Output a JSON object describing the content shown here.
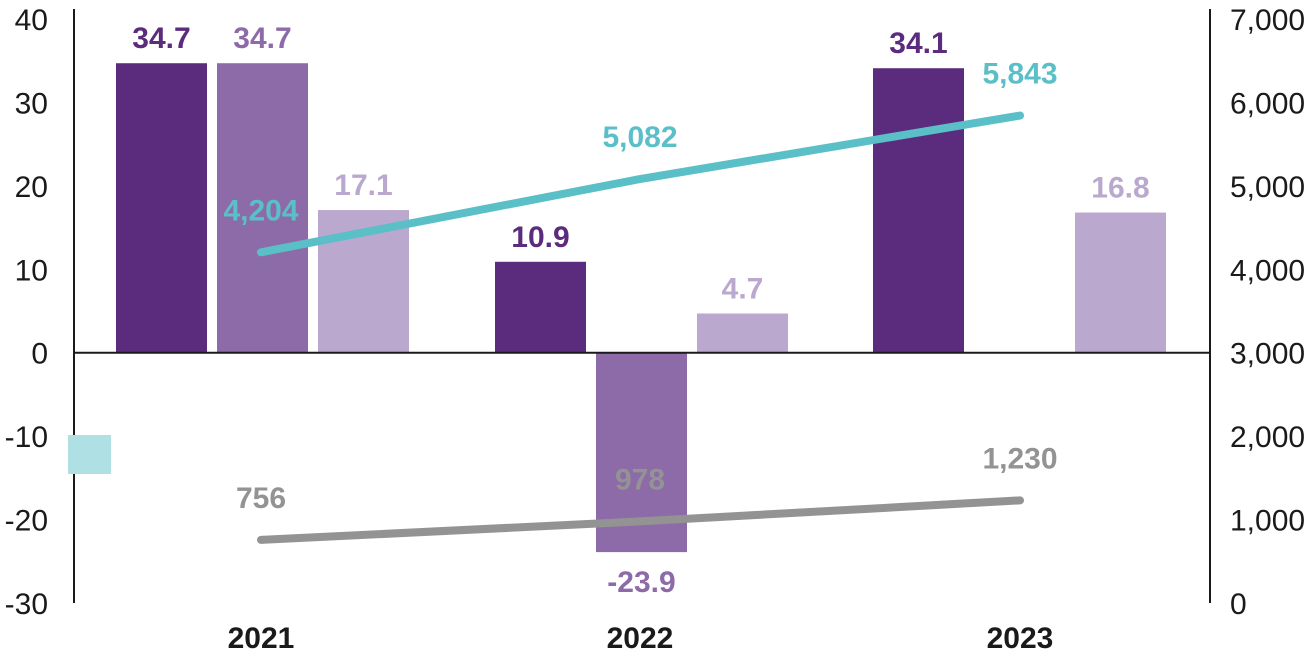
{
  "chart_data": {
    "type": "bar",
    "categories": [
      "2021",
      "2022",
      "2023"
    ],
    "left_axis": {
      "ylim": [
        -30,
        40
      ],
      "ticks": [
        40,
        30,
        20,
        10,
        0,
        -10,
        -20,
        -30
      ],
      "tick_labels": [
        "40",
        "30",
        "20",
        "10",
        "0",
        "-10",
        "-20",
        "-30"
      ]
    },
    "right_axis": {
      "ylim": [
        0,
        7000
      ],
      "ticks": [
        7000,
        6000,
        5000,
        4000,
        3000,
        2000,
        1000,
        0
      ],
      "tick_labels": [
        "7,000",
        "6,000",
        "5,000",
        "4,000",
        "3,000",
        "2,000",
        "1,000",
        "0"
      ]
    },
    "bar_series": [
      {
        "color": "#5b2c7e",
        "values": [
          34.7,
          10.9,
          34.1
        ],
        "labels": [
          "34.7",
          "10.9",
          "34.1"
        ]
      },
      {
        "color": "#8d6aa8",
        "values": [
          34.7,
          -23.9,
          null
        ],
        "labels": [
          "34.7",
          "-23.9",
          ""
        ]
      },
      {
        "color": "#bba8cf",
        "values": [
          17.1,
          4.7,
          16.8
        ],
        "labels": [
          "17.1",
          "4.7",
          "16.8"
        ]
      }
    ],
    "line_series": [
      {
        "color": "#5bbfc8",
        "axis": "right",
        "values": [
          4204,
          5082,
          5843
        ],
        "labels": [
          "4,204",
          "5,082",
          "5,843"
        ]
      },
      {
        "color": "#939393",
        "axis": "right",
        "values": [
          756,
          978,
          1230
        ],
        "labels": [
          "756",
          "978",
          "1,230"
        ]
      }
    ],
    "legend": [
      {
        "color": "#aee0e4",
        "label": ""
      }
    ],
    "grid": false,
    "title": "",
    "xlabel": "",
    "ylabel": ""
  }
}
